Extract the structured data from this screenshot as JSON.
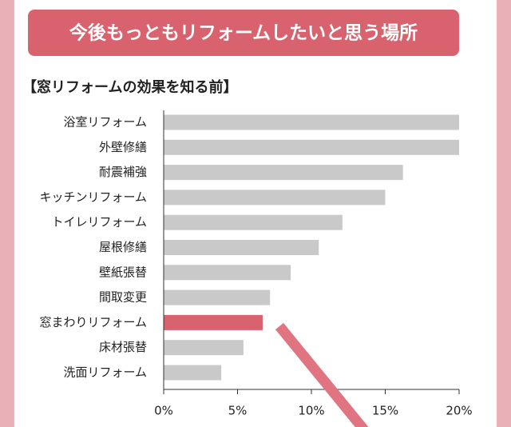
{
  "chart_data": {
    "type": "bar",
    "orientation": "horizontal",
    "title": "今後もっともリフォームしたいと思う場所",
    "subtitle": "【窓リフォームの効果を知る前】",
    "categories": [
      "浴室リフォーム",
      "外壁修繕",
      "耐震補強",
      "キッチンリフォーム",
      "トイレリフォーム",
      "屋根修繕",
      "壁紙張替",
      "間取変更",
      "窓まわりリフォーム",
      "床材張替",
      "洗面リフォーム"
    ],
    "values": [
      20.0,
      20.0,
      16.2,
      15.0,
      12.1,
      10.5,
      8.6,
      7.2,
      6.7,
      5.4,
      3.9
    ],
    "bar_colors": [
      "#c9c9c9",
      "#c9c9c9",
      "#c9c9c9",
      "#c9c9c9",
      "#c9c9c9",
      "#c9c9c9",
      "#c9c9c9",
      "#c9c9c9",
      "#d9626f",
      "#c9c9c9",
      "#c9c9c9"
    ],
    "xlim": [
      0,
      20
    ],
    "xticks": [
      {
        "value": 0,
        "label": "0%"
      },
      {
        "value": 5,
        "label": "5%"
      },
      {
        "value": 10,
        "label": "10%"
      },
      {
        "value": 15,
        "label": "15%"
      },
      {
        "value": 20,
        "label": "20%"
      }
    ],
    "grid": false
  }
}
